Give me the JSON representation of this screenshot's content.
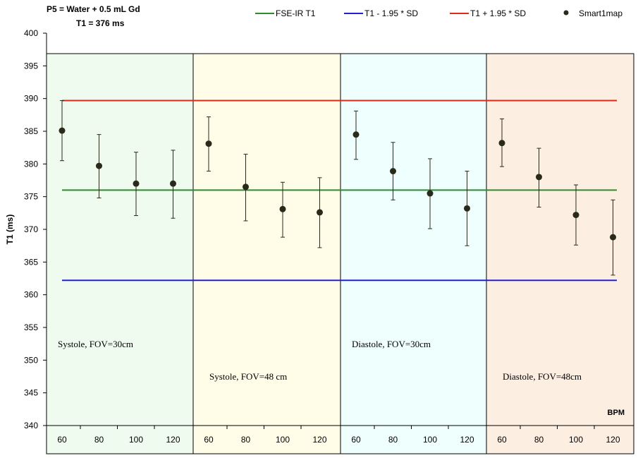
{
  "chart_data": {
    "type": "scatter",
    "title_line1": "P5 = Water + 0.5 mL Gd",
    "title_line2": "T1 = 376 ms",
    "ylabel": "T1 (ms)",
    "xlabel": "BPM",
    "ylim": [
      340,
      400
    ],
    "yticks": [
      "340",
      "345",
      "350",
      "355",
      "360",
      "365",
      "370",
      "375",
      "380",
      "385",
      "390",
      "395",
      "400"
    ],
    "grid": false,
    "legend_position": "top",
    "legend": [
      {
        "name": "FSE-IR T1",
        "color": "#2e8b2e",
        "kind": "line"
      },
      {
        "name": "T1 - 1.95 * SD",
        "color": "#2222cc",
        "kind": "line"
      },
      {
        "name": "T1 + 1.95 * SD",
        "color": "#dd2a1a",
        "kind": "line"
      },
      {
        "name": "Smart1map",
        "color": "#2a2a1a",
        "kind": "marker"
      }
    ],
    "reference_lines": [
      {
        "name": "FSE-IR T1",
        "value": 376,
        "color": "#2e8b2e"
      },
      {
        "name": "T1 - 1.95 * SD",
        "value": 362.2,
        "color": "#2222cc"
      },
      {
        "name": "T1 + 1.95 * SD",
        "value": 389.7,
        "color": "#dd2a1a"
      }
    ],
    "groups": [
      {
        "label": "Systole, FOV=30cm",
        "label_level": "high",
        "color": "#f0fbef",
        "bpm": [
          "60",
          "80",
          "100",
          "120"
        ],
        "values": [
          385.1,
          379.7,
          377.0,
          377.0
        ],
        "err_low": [
          380.5,
          374.8,
          372.1,
          371.7
        ],
        "err_high": [
          389.7,
          384.5,
          381.8,
          382.1
        ]
      },
      {
        "label": "Systole, FOV=48 cm",
        "label_level": "low",
        "color": "#fffde8",
        "bpm": [
          "60",
          "80",
          "100",
          "120"
        ],
        "values": [
          383.1,
          376.5,
          373.1,
          372.6
        ],
        "err_low": [
          378.9,
          371.3,
          368.8,
          367.2
        ],
        "err_high": [
          387.2,
          381.5,
          377.2,
          377.9
        ]
      },
      {
        "label": "Diastole, FOV=30cm",
        "label_level": "high",
        "color": "#eefffe",
        "bpm": [
          "60",
          "80",
          "100",
          "120"
        ],
        "values": [
          384.5,
          378.9,
          375.5,
          373.2
        ],
        "err_low": [
          380.7,
          374.5,
          370.1,
          367.5
        ],
        "err_high": [
          388.1,
          383.3,
          380.8,
          378.9
        ]
      },
      {
        "label": "Diastole, FOV=48cm",
        "label_level": "low",
        "color": "#fdeee2",
        "bpm": [
          "60",
          "80",
          "100",
          "120"
        ],
        "values": [
          383.2,
          378.0,
          372.2,
          368.8
        ],
        "err_low": [
          379.6,
          373.4,
          367.6,
          363.0
        ],
        "err_high": [
          386.9,
          382.4,
          376.8,
          374.5
        ]
      }
    ]
  }
}
